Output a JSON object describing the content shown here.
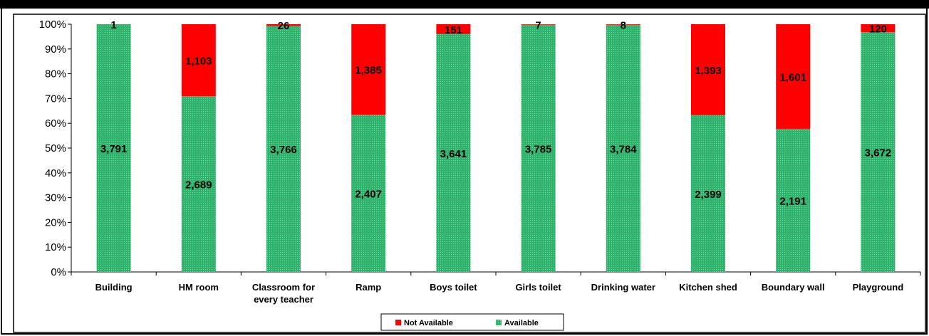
{
  "chart_data": {
    "type": "bar",
    "stacked": "percent",
    "categories": [
      [
        "Building"
      ],
      [
        "HM room"
      ],
      [
        "Classroom for",
        "every teacher"
      ],
      [
        "Ramp"
      ],
      [
        "Boys toilet"
      ],
      [
        "Girls  toilet"
      ],
      [
        "Drinking water"
      ],
      [
        "Kitchen shed"
      ],
      [
        "Boundary wall"
      ],
      [
        "Playground"
      ]
    ],
    "series": [
      {
        "name": "Available",
        "color": "#2db36b",
        "values": [
          3791,
          2689,
          3766,
          2407,
          3641,
          3785,
          3784,
          2399,
          2191,
          3672
        ],
        "labels": [
          "3,791",
          "2,689",
          "3,766",
          "2,407",
          "3,641",
          "3,785",
          "3,784",
          "2,399",
          "2,191",
          "3,672"
        ]
      },
      {
        "name": "Not Available",
        "color": "#ff0000",
        "values": [
          1,
          1103,
          26,
          1385,
          151,
          7,
          8,
          1393,
          1601,
          120
        ],
        "labels": [
          "1",
          "1,103",
          "26",
          "1,385",
          "151",
          "7",
          "8",
          "1,393",
          "1,601",
          "120"
        ]
      }
    ],
    "yticks": [
      "0%",
      "10%",
      "20%",
      "30%",
      "40%",
      "50%",
      "60%",
      "70%",
      "80%",
      "90%",
      "100%"
    ],
    "ylim": [
      0,
      100
    ],
    "grid": false,
    "legend": {
      "placement": "bottom-center",
      "entries": [
        "Not Available",
        "Available"
      ]
    }
  }
}
